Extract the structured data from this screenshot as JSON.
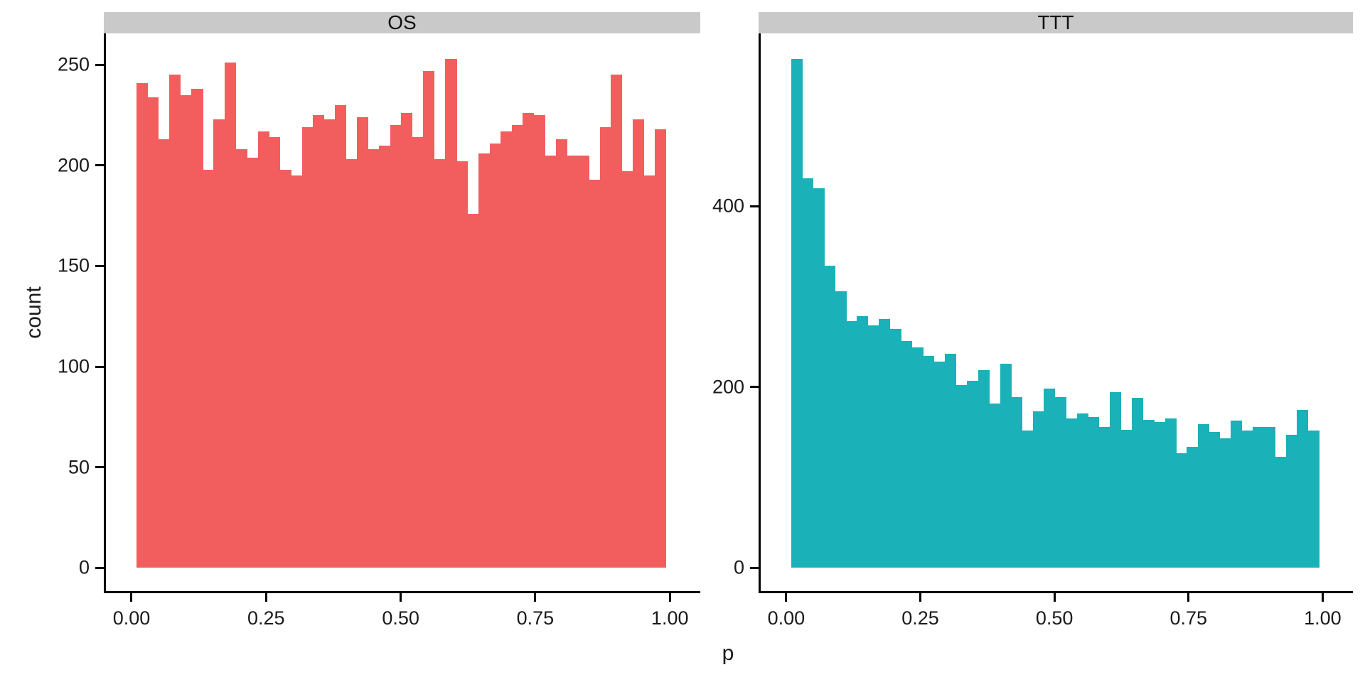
{
  "axes": {
    "y_title": "count",
    "x_title": "p",
    "x_tick_values": [
      0,
      0.25,
      0.5,
      0.75,
      1
    ],
    "x_tick_labels": [
      "0.00",
      "0.25",
      "0.50",
      "0.75",
      "1.00"
    ]
  },
  "styles": {
    "strip_background": "#C9C9C9",
    "axis_color": "#000000",
    "text_color": "#1A1A1A",
    "os_fill": "#F25E5E",
    "ttt_fill": "#1AB1B8"
  },
  "chart_data": [
    {
      "type": "bar",
      "subtype": "histogram",
      "facet": "OS",
      "fill": "#F25E5E",
      "xlabel": "p",
      "ylabel": "count",
      "bin_start": 0.005,
      "bin_width": 0.0205,
      "xlim": [
        0,
        1
      ],
      "ylim": [
        0,
        266
      ],
      "grid": "off",
      "y_ticks": [
        0,
        50,
        100,
        150,
        200,
        250
      ],
      "y_tick_labels": [
        "0",
        "50",
        "100",
        "150",
        "200",
        "250"
      ],
      "values": [
        241,
        234,
        213,
        245,
        235,
        238,
        198,
        223,
        251,
        208,
        204,
        217,
        214,
        198,
        195,
        219,
        225,
        223,
        230,
        203,
        224,
        208,
        210,
        220,
        226,
        214,
        247,
        203,
        253,
        202,
        176,
        206,
        211,
        217,
        220,
        226,
        225,
        205,
        213,
        205,
        205,
        193,
        219,
        245,
        197,
        223,
        195,
        218
      ]
    },
    {
      "type": "bar",
      "subtype": "histogram",
      "facet": "TTT",
      "fill": "#1AB1B8",
      "xlabel": "p",
      "ylabel": "count",
      "bin_start": 0.005,
      "bin_width": 0.0205,
      "xlim": [
        0,
        1
      ],
      "ylim": [
        0,
        592
      ],
      "grid": "off",
      "y_ticks": [
        0,
        200,
        400
      ],
      "y_tick_labels": [
        "0",
        "200",
        "400"
      ],
      "values": [
        563,
        431,
        420,
        334,
        306,
        273,
        278,
        268,
        275,
        264,
        251,
        244,
        234,
        228,
        237,
        202,
        207,
        219,
        182,
        226,
        189,
        152,
        173,
        198,
        189,
        165,
        171,
        167,
        156,
        194,
        153,
        188,
        164,
        161,
        165,
        127,
        134,
        159,
        150,
        143,
        163,
        152,
        156,
        156,
        123,
        147,
        175,
        152
      ]
    }
  ]
}
